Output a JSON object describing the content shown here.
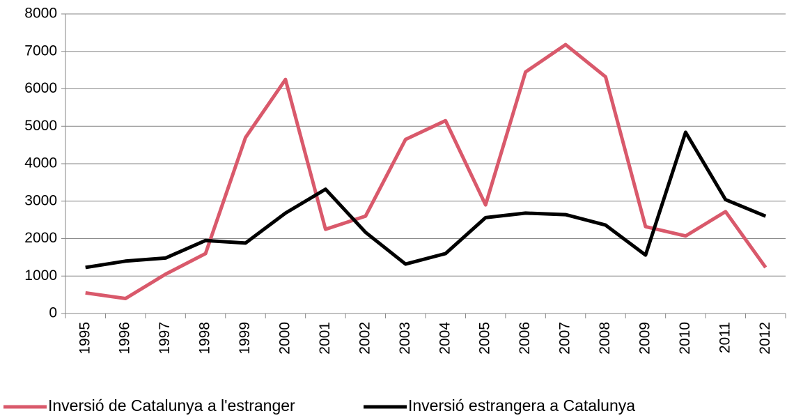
{
  "chart_data": {
    "type": "line",
    "categories": [
      "1995",
      "1996",
      "1997",
      "1998",
      "1999",
      "2000",
      "2001",
      "2002",
      "2003",
      "2004",
      "2005",
      "2006",
      "2007",
      "2008",
      "2009",
      "2010",
      "2011",
      "2012"
    ],
    "series": [
      {
        "name": "Inversió de Catalunya a l'estranger",
        "color": "#d9596b",
        "values": [
          550,
          400,
          1050,
          1600,
          4700,
          6250,
          2250,
          2600,
          4650,
          5150,
          2900,
          6450,
          7180,
          6320,
          2320,
          2070,
          2720,
          1230
        ]
      },
      {
        "name": "Inversió estrangera a Catalunya",
        "color": "#000000",
        "values": [
          1230,
          1400,
          1480,
          1950,
          1880,
          2680,
          3320,
          2170,
          1320,
          1600,
          2560,
          2680,
          2640,
          2360,
          1560,
          4840,
          3040,
          2600
        ]
      }
    ],
    "ylim": [
      0,
      8000
    ],
    "yticks": [
      0,
      1000,
      2000,
      3000,
      4000,
      5000,
      6000,
      7000,
      8000
    ],
    "grid": true,
    "legend": "bottom"
  }
}
